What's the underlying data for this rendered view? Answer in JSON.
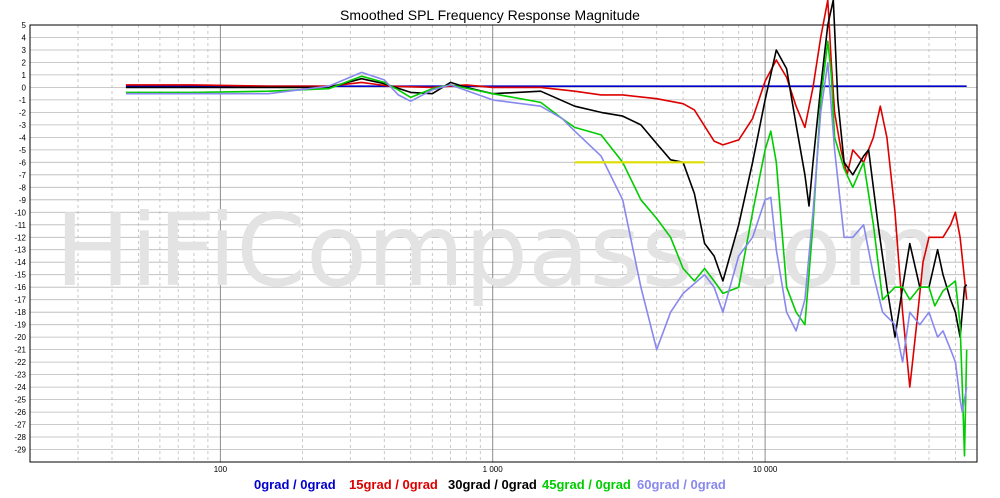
{
  "chart_data": {
    "type": "line",
    "title": "Smoothed SPL Frequency Response Magnitude",
    "watermark": "HiFiCompass.com",
    "x_scale": "log",
    "xlim": [
      20,
      60000
    ],
    "ylim": [
      -30,
      5
    ],
    "x_tick_labels": [
      {
        "value": 100,
        "label": "100"
      },
      {
        "value": 1000,
        "label": "1 000"
      },
      {
        "value": 10000,
        "label": "10 000"
      }
    ],
    "y_ticks": [
      5,
      4,
      3,
      2,
      1,
      0,
      -1,
      -2,
      -3,
      -4,
      -5,
      -6,
      -7,
      -8,
      -9,
      -10,
      -11,
      -12,
      -13,
      -14,
      -15,
      -16,
      -17,
      -18,
      -19,
      -20,
      -21,
      -22,
      -23,
      -24,
      -25,
      -26,
      -27,
      -28,
      -29
    ],
    "grid": true,
    "legend_position": "bottom",
    "series": [
      {
        "name": "0grad / 0grad",
        "color": "#0000cc",
        "points": [
          [
            45,
            0.1
          ],
          [
            100,
            0.1
          ],
          [
            300,
            0.1
          ],
          [
            1000,
            0.1
          ],
          [
            3000,
            0.1
          ],
          [
            10000,
            0.1
          ],
          [
            30000,
            0.1
          ],
          [
            55000,
            0.1
          ]
        ]
      },
      {
        "name": "15grad / 0grad",
        "color": "#dd0000",
        "points": [
          [
            45,
            0.2
          ],
          [
            80,
            0.2
          ],
          [
            150,
            0.1
          ],
          [
            250,
            0.1
          ],
          [
            330,
            0.4
          ],
          [
            420,
            0.1
          ],
          [
            600,
            0
          ],
          [
            800,
            0.2
          ],
          [
            1000,
            0
          ],
          [
            1500,
            0
          ],
          [
            2000,
            -0.3
          ],
          [
            2500,
            -0.6
          ],
          [
            3000,
            -0.6
          ],
          [
            4000,
            -0.9
          ],
          [
            5000,
            -1.3
          ],
          [
            5500,
            -1.8
          ],
          [
            6000,
            -3.1
          ],
          [
            6500,
            -4.3
          ],
          [
            7000,
            -4.6
          ],
          [
            8000,
            -4.2
          ],
          [
            9000,
            -2.5
          ],
          [
            10000,
            0.5
          ],
          [
            11000,
            2.2
          ],
          [
            12000,
            0.8
          ],
          [
            13000,
            -1.5
          ],
          [
            14000,
            -3.2
          ],
          [
            15000,
            0
          ],
          [
            16000,
            4
          ],
          [
            17000,
            7
          ],
          [
            17500,
            2
          ],
          [
            18000,
            -2
          ],
          [
            19000,
            -5
          ],
          [
            20000,
            -7
          ],
          [
            21000,
            -5
          ],
          [
            23000,
            -6
          ],
          [
            25000,
            -4
          ],
          [
            26500,
            -1.5
          ],
          [
            28000,
            -4
          ],
          [
            30000,
            -10
          ],
          [
            32000,
            -18
          ],
          [
            34000,
            -24
          ],
          [
            36000,
            -19
          ],
          [
            38000,
            -14
          ],
          [
            40000,
            -12
          ],
          [
            45000,
            -12
          ],
          [
            48000,
            -11
          ],
          [
            50000,
            -10
          ],
          [
            52000,
            -12
          ],
          [
            55000,
            -17
          ]
        ]
      },
      {
        "name": "30grad / 0grad",
        "color": "#000000",
        "points": [
          [
            45,
            0
          ],
          [
            80,
            0
          ],
          [
            150,
            0
          ],
          [
            250,
            0
          ],
          [
            330,
            0.7
          ],
          [
            400,
            0.3
          ],
          [
            500,
            -0.4
          ],
          [
            600,
            -0.5
          ],
          [
            700,
            0.4
          ],
          [
            800,
            0
          ],
          [
            1000,
            -0.5
          ],
          [
            1500,
            -0.3
          ],
          [
            2000,
            -1.5
          ],
          [
            2500,
            -2
          ],
          [
            3000,
            -2.3
          ],
          [
            3500,
            -3
          ],
          [
            4000,
            -4.5
          ],
          [
            4500,
            -5.8
          ],
          [
            5000,
            -6
          ],
          [
            5500,
            -8.5
          ],
          [
            6000,
            -12.5
          ],
          [
            6500,
            -13.5
          ],
          [
            7000,
            -15.5
          ],
          [
            8000,
            -11
          ],
          [
            9000,
            -6
          ],
          [
            10000,
            -1
          ],
          [
            11000,
            3
          ],
          [
            12000,
            1.5
          ],
          [
            13000,
            -3
          ],
          [
            14000,
            -7
          ],
          [
            14500,
            -9.5
          ],
          [
            15000,
            -6
          ],
          [
            16000,
            0
          ],
          [
            17000,
            5
          ],
          [
            17800,
            7
          ],
          [
            18500,
            -1
          ],
          [
            19500,
            -6
          ],
          [
            21000,
            -7
          ],
          [
            23000,
            -5.5
          ],
          [
            24000,
            -5
          ],
          [
            26000,
            -11
          ],
          [
            28000,
            -16
          ],
          [
            30000,
            -20
          ],
          [
            32000,
            -16
          ],
          [
            34000,
            -12.5
          ],
          [
            37000,
            -16
          ],
          [
            40000,
            -16
          ],
          [
            43000,
            -13
          ],
          [
            45000,
            -15
          ],
          [
            48000,
            -17
          ],
          [
            50000,
            -18
          ],
          [
            52000,
            -20
          ],
          [
            54000,
            -16
          ],
          [
            55000,
            -15.8
          ]
        ]
      },
      {
        "name": "45grad / 0grad",
        "color": "#00cc00",
        "points": [
          [
            45,
            -0.4
          ],
          [
            80,
            -0.4
          ],
          [
            150,
            -0.3
          ],
          [
            250,
            -0.1
          ],
          [
            330,
            0.9
          ],
          [
            400,
            0.4
          ],
          [
            450,
            -0.2
          ],
          [
            500,
            -0.8
          ],
          [
            600,
            -0.1
          ],
          [
            700,
            0.2
          ],
          [
            1000,
            -0.5
          ],
          [
            1500,
            -1.2
          ],
          [
            1800,
            -2.5
          ],
          [
            2000,
            -3.2
          ],
          [
            2500,
            -3.8
          ],
          [
            3000,
            -6
          ],
          [
            3500,
            -9
          ],
          [
            4000,
            -10.5
          ],
          [
            4500,
            -12
          ],
          [
            5000,
            -14.5
          ],
          [
            5500,
            -15.5
          ],
          [
            6000,
            -14.5
          ],
          [
            6500,
            -15.5
          ],
          [
            7000,
            -16.5
          ],
          [
            8000,
            -16
          ],
          [
            9000,
            -10
          ],
          [
            10000,
            -5
          ],
          [
            10500,
            -3.5
          ],
          [
            11000,
            -6
          ],
          [
            12000,
            -16
          ],
          [
            13000,
            -18
          ],
          [
            14000,
            -19
          ],
          [
            15000,
            -11
          ],
          [
            16000,
            -1
          ],
          [
            17000,
            3.7
          ],
          [
            17500,
            1
          ],
          [
            18000,
            -4
          ],
          [
            19500,
            -6.5
          ],
          [
            21000,
            -8
          ],
          [
            23000,
            -6
          ],
          [
            25000,
            -11
          ],
          [
            27000,
            -17
          ],
          [
            30000,
            -16
          ],
          [
            32000,
            -16
          ],
          [
            34000,
            -17
          ],
          [
            37000,
            -16
          ],
          [
            40000,
            -16
          ],
          [
            42000,
            -17.5
          ],
          [
            45000,
            -16.3
          ],
          [
            50000,
            -15.5
          ],
          [
            52000,
            -19
          ],
          [
            53000,
            -24
          ],
          [
            54000,
            -29.5
          ],
          [
            55000,
            -21
          ]
        ]
      },
      {
        "name": "60grad / 0grad",
        "color": "#8888ee",
        "points": [
          [
            45,
            -0.5
          ],
          [
            80,
            -0.5
          ],
          [
            150,
            -0.5
          ],
          [
            250,
            0.1
          ],
          [
            330,
            1.2
          ],
          [
            400,
            0.6
          ],
          [
            450,
            -0.6
          ],
          [
            500,
            -1.1
          ],
          [
            600,
            -0.2
          ],
          [
            700,
            0.2
          ],
          [
            1000,
            -1
          ],
          [
            1500,
            -1.5
          ],
          [
            1800,
            -2.5
          ],
          [
            2000,
            -3.5
          ],
          [
            2500,
            -5.5
          ],
          [
            3000,
            -9
          ],
          [
            3500,
            -16
          ],
          [
            4000,
            -21
          ],
          [
            4500,
            -18
          ],
          [
            5000,
            -16.5
          ],
          [
            6000,
            -15
          ],
          [
            6500,
            -16
          ],
          [
            7000,
            -18
          ],
          [
            8000,
            -13.5
          ],
          [
            9000,
            -12
          ],
          [
            10000,
            -9
          ],
          [
            10500,
            -8.8
          ],
          [
            11000,
            -13
          ],
          [
            12000,
            -18
          ],
          [
            13000,
            -19.5
          ],
          [
            14000,
            -17
          ],
          [
            15000,
            -10
          ],
          [
            16000,
            -2
          ],
          [
            17000,
            2
          ],
          [
            18000,
            -5
          ],
          [
            19500,
            -12
          ],
          [
            21000,
            -12
          ],
          [
            23000,
            -11
          ],
          [
            25000,
            -15
          ],
          [
            27000,
            -18
          ],
          [
            30000,
            -19
          ],
          [
            32000,
            -22
          ],
          [
            34000,
            -18
          ],
          [
            37000,
            -19
          ],
          [
            40000,
            -18
          ],
          [
            43000,
            -20
          ],
          [
            45000,
            -19.5
          ],
          [
            48000,
            -21
          ],
          [
            50000,
            -22
          ],
          [
            52000,
            -25
          ],
          [
            53000,
            -26
          ],
          [
            55000,
            -24
          ]
        ]
      },
      {
        "name": "",
        "color": "#dddd00",
        "points": [
          [
            2000,
            -6
          ],
          [
            6000,
            -6
          ]
        ]
      }
    ]
  }
}
